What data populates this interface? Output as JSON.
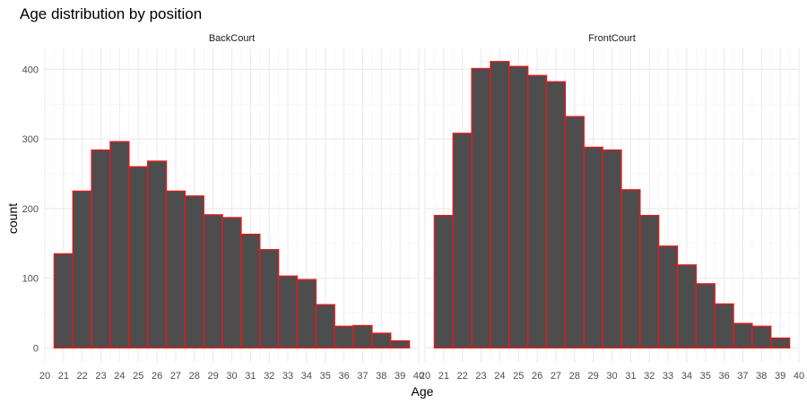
{
  "chart_data": {
    "type": "histogram",
    "title": "Age distribution by position",
    "xlabel": "Age",
    "ylabel": "count",
    "xlim": [
      20,
      40
    ],
    "ylim": [
      -20,
      430
    ],
    "x_ticks": [
      20,
      21,
      22,
      23,
      24,
      25,
      26,
      27,
      28,
      29,
      30,
      31,
      32,
      33,
      34,
      35,
      36,
      37,
      38,
      39,
      40
    ],
    "y_ticks": [
      0,
      100,
      200,
      300,
      400
    ],
    "bin_edges": [
      20.5,
      21.5,
      22.5,
      23.5,
      24.5,
      25.5,
      26.5,
      27.5,
      28.5,
      29.5,
      30.5,
      31.5,
      32.5,
      33.5,
      34.5,
      35.5,
      36.5,
      37.5,
      38.5,
      39.5
    ],
    "grid": true,
    "fill_color": "#4d4d4d",
    "border_color": "#e41a1c",
    "panels": [
      {
        "name": "BackCourt",
        "values": [
          135,
          225,
          284,
          296,
          260,
          268,
          225,
          218,
          191,
          187,
          163,
          141,
          103,
          98,
          62,
          31,
          32,
          21,
          10
        ]
      },
      {
        "name": "FrontCourt",
        "values": [
          190,
          308,
          401,
          411,
          404,
          391,
          382,
          332,
          288,
          284,
          227,
          190,
          146,
          119,
          92,
          63,
          35,
          31,
          14
        ]
      }
    ]
  }
}
